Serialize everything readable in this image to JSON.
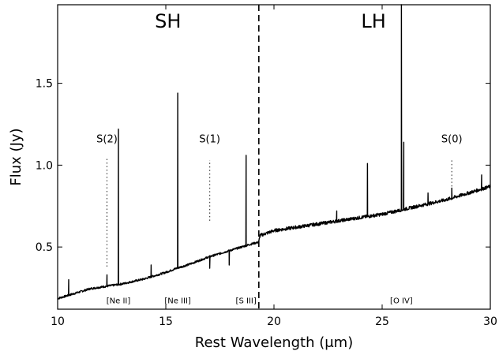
{
  "chart_data": {
    "type": "line",
    "xlabel": "Rest Wavelength (μm)",
    "ylabel": "Flux (Jy)",
    "xlim": [
      10,
      30
    ],
    "ylim": [
      0.12,
      1.98
    ],
    "xticks": [
      10,
      15,
      20,
      25,
      30
    ],
    "xtick_labels": [
      "10",
      "15",
      "20",
      "25",
      "30"
    ],
    "yticks": [
      0.5,
      1.0,
      1.5
    ],
    "ytick_labels": [
      "0.5",
      "1.0",
      "1.5"
    ],
    "grid": false,
    "series": [
      {
        "color": "#000000",
        "continuum": [
          [
            10.0,
            0.185
          ],
          [
            10.5,
            0.205
          ],
          [
            11.0,
            0.225
          ],
          [
            11.5,
            0.245
          ],
          [
            12.0,
            0.255
          ],
          [
            12.5,
            0.265
          ],
          [
            13.0,
            0.275
          ],
          [
            13.5,
            0.29
          ],
          [
            14.0,
            0.305
          ],
          [
            14.5,
            0.325
          ],
          [
            15.0,
            0.345
          ],
          [
            15.5,
            0.37
          ],
          [
            16.0,
            0.39
          ],
          [
            16.5,
            0.415
          ],
          [
            17.0,
            0.44
          ],
          [
            17.5,
            0.46
          ],
          [
            18.0,
            0.48
          ],
          [
            18.5,
            0.5
          ],
          [
            19.0,
            0.52
          ],
          [
            19.3,
            0.53
          ],
          [
            19.35,
            0.57
          ],
          [
            20.0,
            0.6
          ],
          [
            21.0,
            0.62
          ],
          [
            22.0,
            0.64
          ],
          [
            23.0,
            0.66
          ],
          [
            24.0,
            0.68
          ],
          [
            25.0,
            0.7
          ],
          [
            26.0,
            0.73
          ],
          [
            27.0,
            0.76
          ],
          [
            28.0,
            0.79
          ],
          [
            29.0,
            0.83
          ],
          [
            30.0,
            0.87
          ]
        ],
        "peaks": [
          [
            10.51,
            0.3
          ],
          [
            12.28,
            0.33
          ],
          [
            12.81,
            1.22
          ],
          [
            14.32,
            0.39
          ],
          [
            15.55,
            1.44
          ],
          [
            17.03,
            0.37
          ],
          [
            17.93,
            0.39
          ],
          [
            18.71,
            1.06
          ],
          [
            22.9,
            0.72
          ],
          [
            24.32,
            1.01
          ],
          [
            25.89,
            1.98
          ],
          [
            26.0,
            1.14
          ],
          [
            27.12,
            0.83
          ],
          [
            28.22,
            0.86
          ],
          [
            29.6,
            0.94
          ]
        ]
      }
    ],
    "annotations": {
      "regions": [
        {
          "text": "SH",
          "x": 15.1,
          "y": 1.84
        },
        {
          "text": "LH",
          "x": 24.6,
          "y": 1.84
        }
      ],
      "divider_x": 19.3,
      "h2_lines": [
        {
          "text": "S(2)",
          "x": 12.28,
          "label_y": 1.14,
          "dot_from": 0.38,
          "dot_to": 1.05
        },
        {
          "text": "S(1)",
          "x": 17.03,
          "label_y": 1.14,
          "dot_from": 0.66,
          "dot_to": 1.03
        },
        {
          "text": "S(0)",
          "x": 28.22,
          "label_y": 1.14,
          "dot_from": 0.87,
          "dot_to": 1.03
        }
      ],
      "ions": [
        {
          "text": "[Ne II]",
          "x": 12.81,
          "y": 0.155
        },
        {
          "text": "[Ne III]",
          "x": 15.55,
          "y": 0.155
        },
        {
          "text": "[S III]",
          "x": 18.71,
          "y": 0.155
        },
        {
          "text": "[O IV]",
          "x": 25.89,
          "y": 0.155
        }
      ]
    }
  }
}
